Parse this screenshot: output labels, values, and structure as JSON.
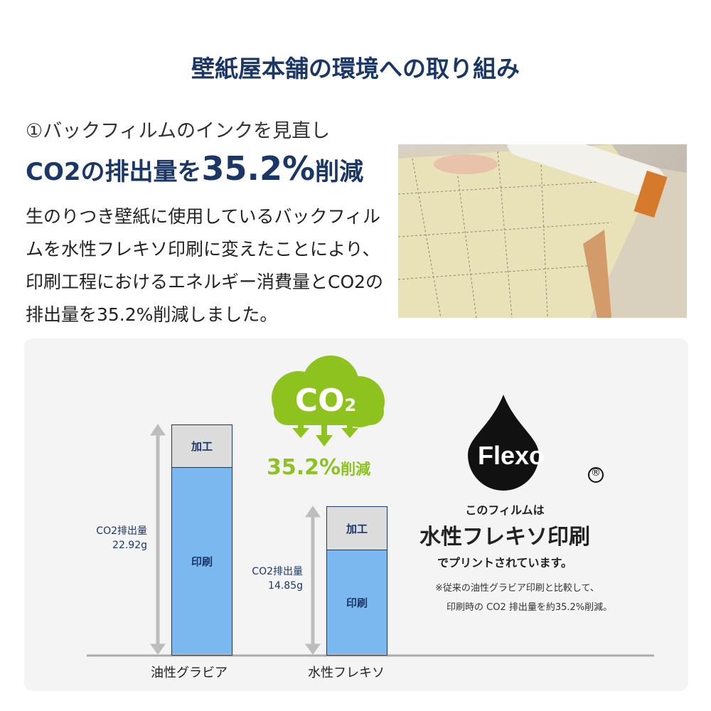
{
  "title": "壁紙屋本舗の環境への取り組み",
  "section": {
    "subtitle": "①バックフィルムのインクを見直し",
    "headline_pre": "CO2の排出量を",
    "headline_value": "35.2%",
    "headline_post": "削減",
    "body": "生のりつき壁紙に使用しているバックフィルムを水性フレキソ印刷に変えたことにより、印刷工程におけるエネルギー消費量とCO2の排出量を35.2%削減しました。"
  },
  "infographic": {
    "cloud_text": "CO",
    "cloud_sub": "2",
    "reduction": "35.2%",
    "reduction_suffix": "削減",
    "bar_top_label": "加工",
    "bar_bottom_label": "印刷",
    "bars": [
      {
        "category": "油性グラビア",
        "label": "CO2排出量",
        "value": "22.92g"
      },
      {
        "category": "水性フレキソ",
        "label": "CO2排出量",
        "value": "14.85g"
      }
    ],
    "logo_text": "Flexo",
    "logo_mark": "®",
    "desc1": "このフィルムは",
    "desc2": "水性フレキソ印刷",
    "desc3": "でプリントされています。",
    "note1": "※従来の油性グラビア印刷と比較して、",
    "note2": "印刷時の CO2 排出量を約35.2%削減。",
    "colors": {
      "navy": "#1b3768",
      "green": "#8dc21f",
      "bar_blue": "#7bb8ef",
      "bar_gray": "#dcdcdc"
    }
  },
  "chart_data": {
    "type": "bar",
    "categories": [
      "油性グラビア",
      "水性フレキソ"
    ],
    "values": [
      22.92,
      14.85
    ],
    "ylabel": "CO2排出量"
  }
}
